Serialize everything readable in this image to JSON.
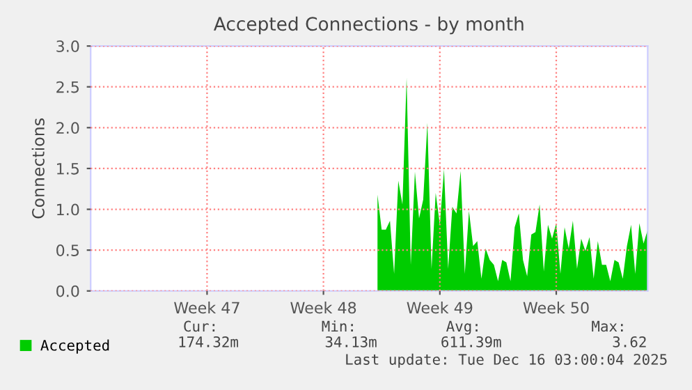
{
  "chart_data": {
    "type": "area",
    "title": "Accepted Connections - by month",
    "ylabel": "Connections",
    "categories": [
      null,
      null,
      null,
      null,
      null,
      null,
      null,
      null,
      null,
      null,
      null,
      null,
      null,
      null,
      null,
      null,
      null,
      null,
      null,
      null,
      null,
      null,
      null,
      null,
      null,
      null,
      null,
      null,
      "Week 47",
      null,
      null,
      null,
      null,
      null,
      null,
      null,
      null,
      null,
      null,
      null,
      null,
      null,
      null,
      null,
      null,
      null,
      null,
      null,
      null,
      null,
      null,
      null,
      null,
      null,
      null,
      null,
      "Week 48",
      null,
      null,
      null,
      null,
      null,
      null,
      null,
      null,
      null,
      null,
      null,
      null,
      null,
      null,
      null,
      null,
      null,
      null,
      null,
      null,
      null,
      null,
      null,
      null,
      null,
      null,
      null,
      "Week 49",
      null,
      null,
      null,
      null,
      null,
      null,
      null,
      null,
      null,
      null,
      null,
      null,
      null,
      null,
      null,
      null,
      null,
      null,
      null,
      null,
      null,
      null,
      null,
      null,
      null,
      null,
      null,
      "Week 50",
      null,
      null,
      null,
      null,
      null,
      null,
      null,
      null,
      null,
      null,
      null,
      null,
      null,
      null,
      null,
      null,
      null,
      null,
      null,
      null,
      null,
      null
    ],
    "series": [
      {
        "name": "Accepted",
        "color": "#00cc00",
        "values": [
          null,
          null,
          null,
          null,
          null,
          null,
          null,
          null,
          null,
          null,
          null,
          null,
          null,
          null,
          null,
          null,
          null,
          null,
          null,
          null,
          null,
          null,
          null,
          null,
          null,
          null,
          null,
          null,
          null,
          null,
          null,
          null,
          null,
          null,
          null,
          null,
          null,
          null,
          null,
          null,
          null,
          null,
          null,
          null,
          null,
          null,
          null,
          null,
          null,
          null,
          null,
          null,
          null,
          null,
          null,
          null,
          null,
          null,
          null,
          null,
          null,
          null,
          null,
          null,
          null,
          null,
          null,
          null,
          null,
          1.18,
          0.75,
          0.75,
          0.86,
          0.21,
          1.35,
          1.06,
          2.61,
          0.32,
          1.46,
          0.89,
          1.12,
          2.06,
          0.27,
          1.2,
          0.81,
          1.49,
          0.27,
          1.03,
          0.95,
          1.47,
          0.21,
          0.98,
          0.55,
          0.61,
          0.15,
          0.52,
          0.38,
          0.32,
          0.12,
          0.38,
          0.35,
          0.12,
          0.78,
          0.95,
          0.38,
          0.18,
          0.69,
          0.72,
          1.06,
          0.24,
          0.81,
          0.64,
          0.83,
          0.21,
          0.78,
          0.52,
          0.86,
          0.27,
          0.64,
          0.49,
          0.66,
          0.15,
          0.61,
          0.32,
          0.32,
          0.12,
          0.38,
          0.35,
          0.15,
          0.55,
          0.81,
          0.21,
          0.83,
          0.58,
          0.75
        ]
      }
    ],
    "ylim": [
      0,
      3
    ],
    "yticks": [
      {
        "value": 0,
        "label": "0.0"
      },
      {
        "value": 0.5,
        "label": "0.5"
      },
      {
        "value": 1,
        "label": "1.0"
      },
      {
        "value": 1.5,
        "label": "1.5"
      },
      {
        "value": 2,
        "label": "2.0"
      },
      {
        "value": 2.5,
        "label": "2.5"
      },
      {
        "value": 3,
        "label": "3.0"
      }
    ],
    "grid": true,
    "legend": "bottom",
    "annotations": [
      "Cur:",
      "Min:",
      "Avg:",
      "Max:",
      "174.32m",
      "34.13m",
      "611.39m",
      "3.62",
      "Last update: Tue Dec 16 03:00:04 2025"
    ]
  }
}
